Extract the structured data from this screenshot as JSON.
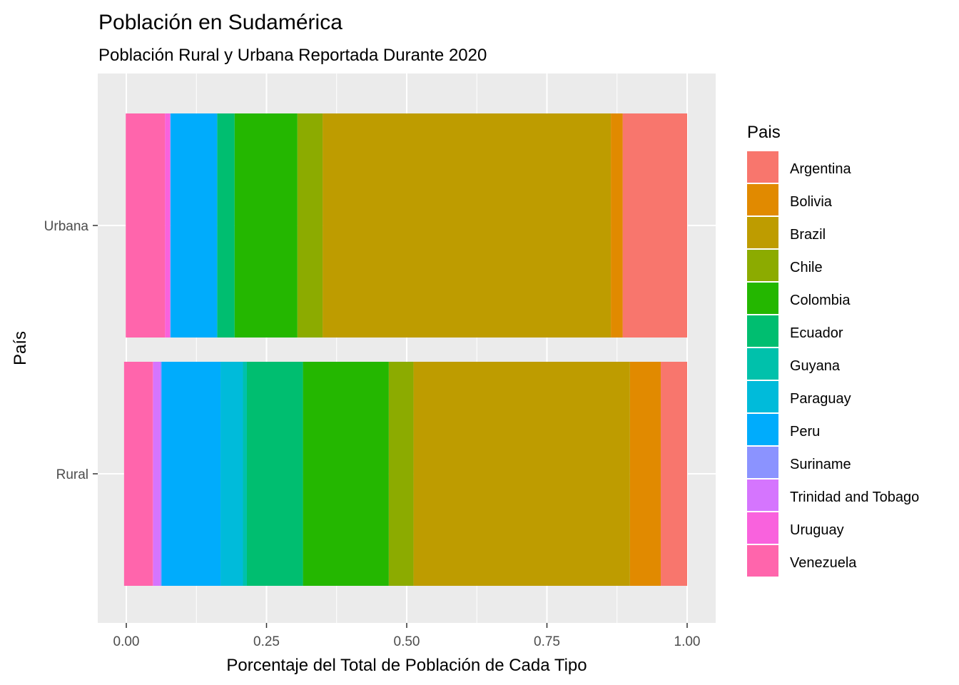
{
  "chart_data": {
    "type": "bar",
    "orientation": "horizontal",
    "stacked": "fill",
    "title": "Población en Sudamérica",
    "subtitle": "Población Rural y Urbana Reportada Durante 2020",
    "xlabel": "Porcentaje del Total de Población de Cada Tipo",
    "ylabel": "País",
    "xlim": [
      0,
      1
    ],
    "x_ticks": [
      "0.00",
      "0.25",
      "0.50",
      "0.75",
      "1.00"
    ],
    "categories": [
      "Urbana",
      "Rural"
    ],
    "legend_title": "Pais",
    "legend_position": "right",
    "grid": true,
    "series": [
      {
        "name": "Argentina",
        "color": "#F8766D",
        "values": [
          0.115,
          0.047
        ]
      },
      {
        "name": "Bolivia",
        "color": "#E18A00",
        "values": [
          0.021,
          0.055
        ]
      },
      {
        "name": "Brazil",
        "color": "#BE9C00",
        "values": [
          0.514,
          0.386
        ]
      },
      {
        "name": "Chile",
        "color": "#8CAB00",
        "values": [
          0.045,
          0.044
        ]
      },
      {
        "name": "Colombia",
        "color": "#24B700",
        "values": [
          0.112,
          0.153
        ]
      },
      {
        "name": "Ecuador",
        "color": "#00BE70",
        "values": [
          0.031,
          0.1
        ]
      },
      {
        "name": "Guyana",
        "color": "#00C1AB",
        "values": [
          0.0,
          0.007
        ]
      },
      {
        "name": "Paraguay",
        "color": "#00BBDA",
        "values": [
          0.0,
          0.04
        ]
      },
      {
        "name": "Peru",
        "color": "#00ACFC",
        "values": [
          0.083,
          0.105
        ]
      },
      {
        "name": "Suriname",
        "color": "#8B93FF",
        "values": [
          0.001,
          0.002
        ]
      },
      {
        "name": "Trinidad and Tobago",
        "color": "#D575FE",
        "values": [
          0.0,
          0.013
        ]
      },
      {
        "name": "Uruguay",
        "color": "#F962DD",
        "values": [
          0.009,
          0.001
        ]
      },
      {
        "name": "Venezuela",
        "color": "#FF65AC",
        "values": [
          0.07,
          0.051
        ]
      }
    ]
  }
}
